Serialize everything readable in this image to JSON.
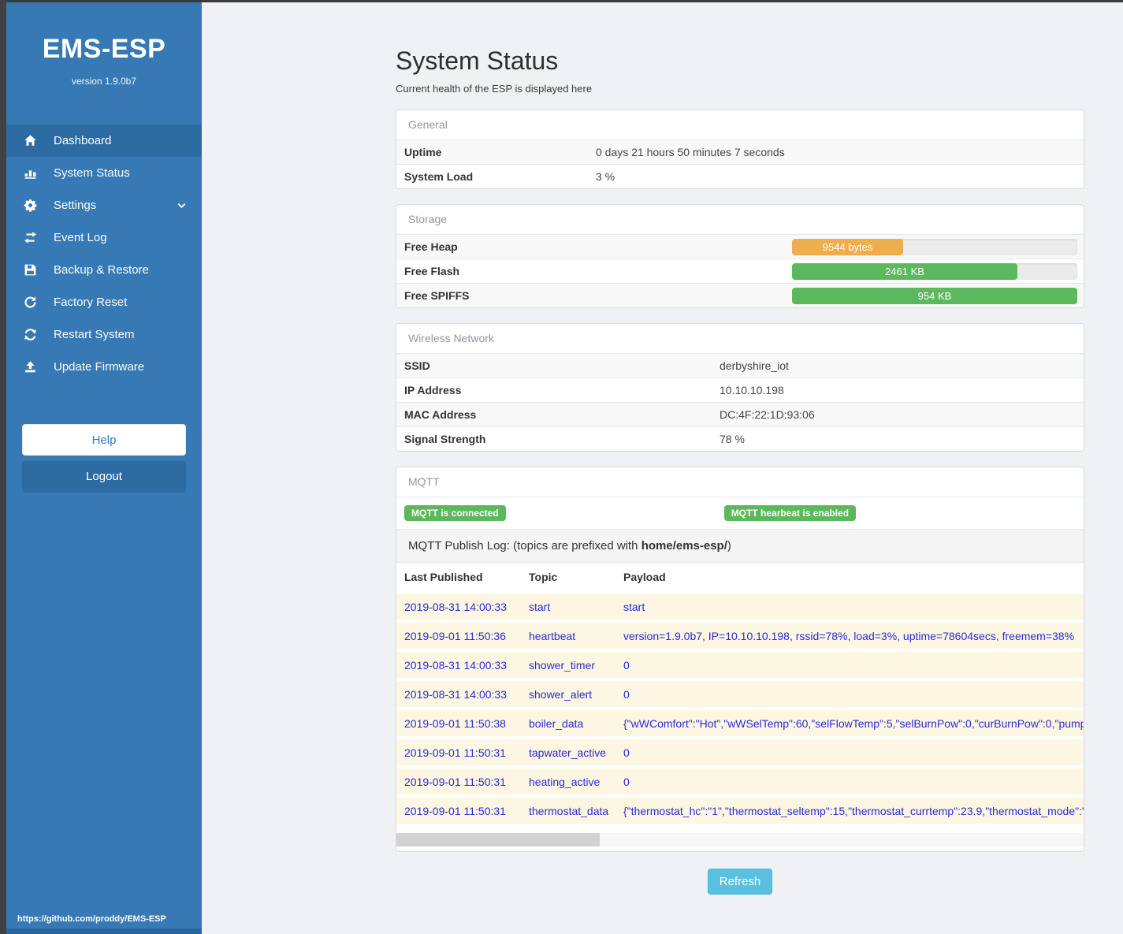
{
  "sidebar": {
    "brand": "EMS-ESP",
    "version": "version 1.9.0b7",
    "items": [
      {
        "label": "Dashboard",
        "icon": "home-icon",
        "active": true
      },
      {
        "label": "System Status",
        "icon": "status-icon"
      },
      {
        "label": "Settings",
        "icon": "gear-icon",
        "chevron": true
      },
      {
        "label": "Event Log",
        "icon": "exchange-icon"
      },
      {
        "label": "Backup & Restore",
        "icon": "save-icon"
      },
      {
        "label": "Factory Reset",
        "icon": "reset-icon"
      },
      {
        "label": "Restart System",
        "icon": "restart-icon"
      },
      {
        "label": "Update Firmware",
        "icon": "upload-icon"
      }
    ],
    "help_label": "Help",
    "logout_label": "Logout",
    "footer_link": "https://github.com/proddy/EMS-ESP"
  },
  "page": {
    "title": "System Status",
    "subtitle": "Current health of the ESP is displayed here",
    "refresh_label": "Refresh"
  },
  "general": {
    "header": "General",
    "rows": [
      {
        "label": "Uptime",
        "value": "0 days 21 hours 50 minutes 7 seconds"
      },
      {
        "label": "System Load",
        "value": "3 %"
      }
    ]
  },
  "storage": {
    "header": "Storage",
    "rows": [
      {
        "label": "Free Heap",
        "value": "9544 bytes",
        "percent": 39,
        "color": "#f0ad4e"
      },
      {
        "label": "Free Flash",
        "value": "2461 KB",
        "percent": 79,
        "color": "#5cb85c"
      },
      {
        "label": "Free SPIFFS",
        "value": "954 KB",
        "percent": 100,
        "color": "#5cb85c"
      }
    ]
  },
  "wireless": {
    "header": "Wireless Network",
    "rows": [
      {
        "label": "SSID",
        "value": "derbyshire_iot"
      },
      {
        "label": "IP Address",
        "value": "10.10.10.198"
      },
      {
        "label": "MAC Address",
        "value": "DC:4F:22:1D:93:06"
      },
      {
        "label": "Signal Strength",
        "value": "78 %"
      }
    ]
  },
  "mqtt": {
    "header": "MQTT",
    "badges": [
      "MQTT is connected",
      "MQTT hearbeat is enabled"
    ],
    "publish_log_prefix": "MQTT Publish Log: (topics are prefixed with ",
    "publish_log_topic": "home/ems-esp/",
    "publish_log_suffix": ")",
    "table": {
      "columns": [
        "Last Published",
        "Topic",
        "Payload"
      ],
      "rows": [
        [
          "2019-08-31 14:00:33",
          "start",
          "start"
        ],
        [
          "2019-09-01 11:50:36",
          "heartbeat",
          "version=1.9.0b7, IP=10.10.10.198, rssid=78%, load=3%, uptime=78604secs, freemem=38%"
        ],
        [
          "2019-08-31 14:00:33",
          "shower_timer",
          "0"
        ],
        [
          "2019-08-31 14:00:33",
          "shower_alert",
          "0"
        ],
        [
          "2019-09-01 11:50:38",
          "boiler_data",
          "{\"wWComfort\":\"Hot\",\"wWSelTemp\":60,\"selFlowTemp\":5,\"selBurnPow\":0,\"curBurnPow\":0,\"pump"
        ],
        [
          "2019-09-01 11:50:31",
          "tapwater_active",
          "0"
        ],
        [
          "2019-09-01 11:50:31",
          "heating_active",
          "0"
        ],
        [
          "2019-09-01 11:50:31",
          "thermostat_data",
          "{\"thermostat_hc\":\"1\",\"thermostat_seltemp\":15,\"thermostat_currtemp\":23.9,\"thermostat_mode\":\""
        ]
      ]
    }
  },
  "colors": {
    "sidebar": "#3779b4",
    "sidebar_active": "#2d6ba3",
    "badge_green": "#5cb85c",
    "bar_orange": "#f0ad4e",
    "bar_green": "#5cb85c",
    "refresh_blue": "#5bc0de",
    "log_row_bg": "#fcf6e2",
    "log_text_blue": "#2a2ad8"
  }
}
